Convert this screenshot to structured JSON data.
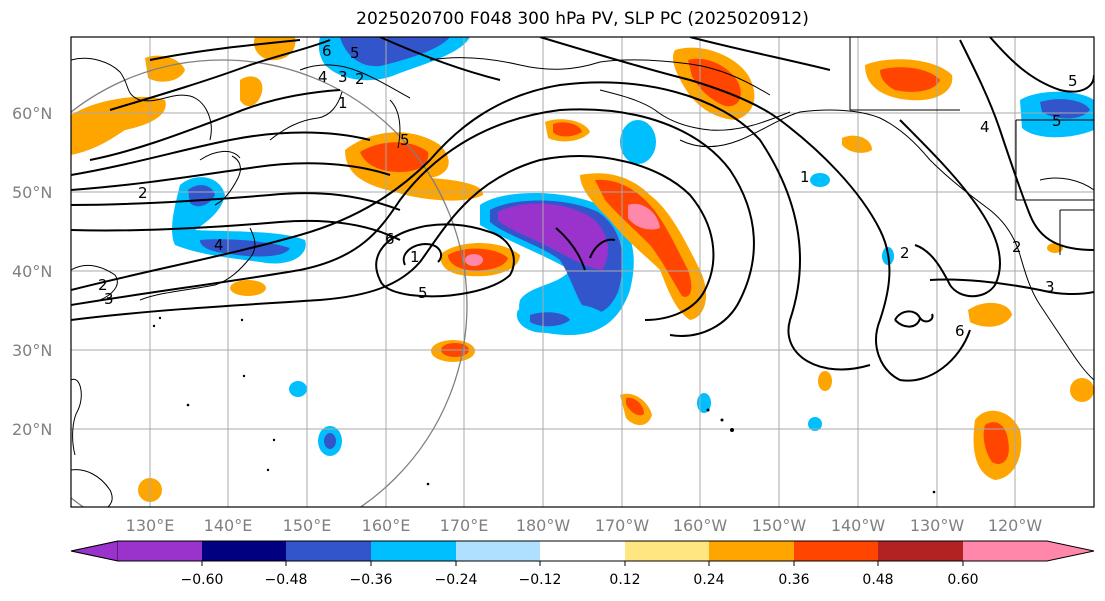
{
  "title": "2025020700 F048 300 hPa PV, SLP PC (2025020912)",
  "lat_labels": [
    "60°N",
    "50°N",
    "40°N",
    "30°N",
    "20°N"
  ],
  "lon_labels": [
    "130°E",
    "140°E",
    "150°E",
    "160°E",
    "170°E",
    "180°W",
    "170°W",
    "160°W",
    "150°W",
    "140°W",
    "130°W",
    "120°W"
  ],
  "colorbar": {
    "colors": [
      "#9933cc",
      "#000080",
      "#3355cc",
      "#00bfff",
      "#b0e0ff",
      "#ffffff",
      "#ffe680",
      "#ffa500",
      "#ff4500",
      "#b22222",
      "#ff88aa"
    ],
    "tick_labels": [
      "−0.60",
      "−0.48",
      "−0.36",
      "−0.24",
      "−0.12",
      "0.12",
      "0.24",
      "0.36",
      "0.48",
      "0.60"
    ]
  },
  "contour_labels": [
    "6",
    "5",
    "4",
    "3",
    "2",
    "1",
    "5",
    "4",
    "2",
    "3",
    "6",
    "1",
    "5",
    "2",
    "1",
    "2",
    "3",
    "2",
    "6",
    "5",
    "4",
    "5"
  ],
  "colors": {
    "ocean": "#ffffff",
    "coast": "#000000",
    "grid": "#a9a9a9",
    "contour": "#000000"
  }
}
